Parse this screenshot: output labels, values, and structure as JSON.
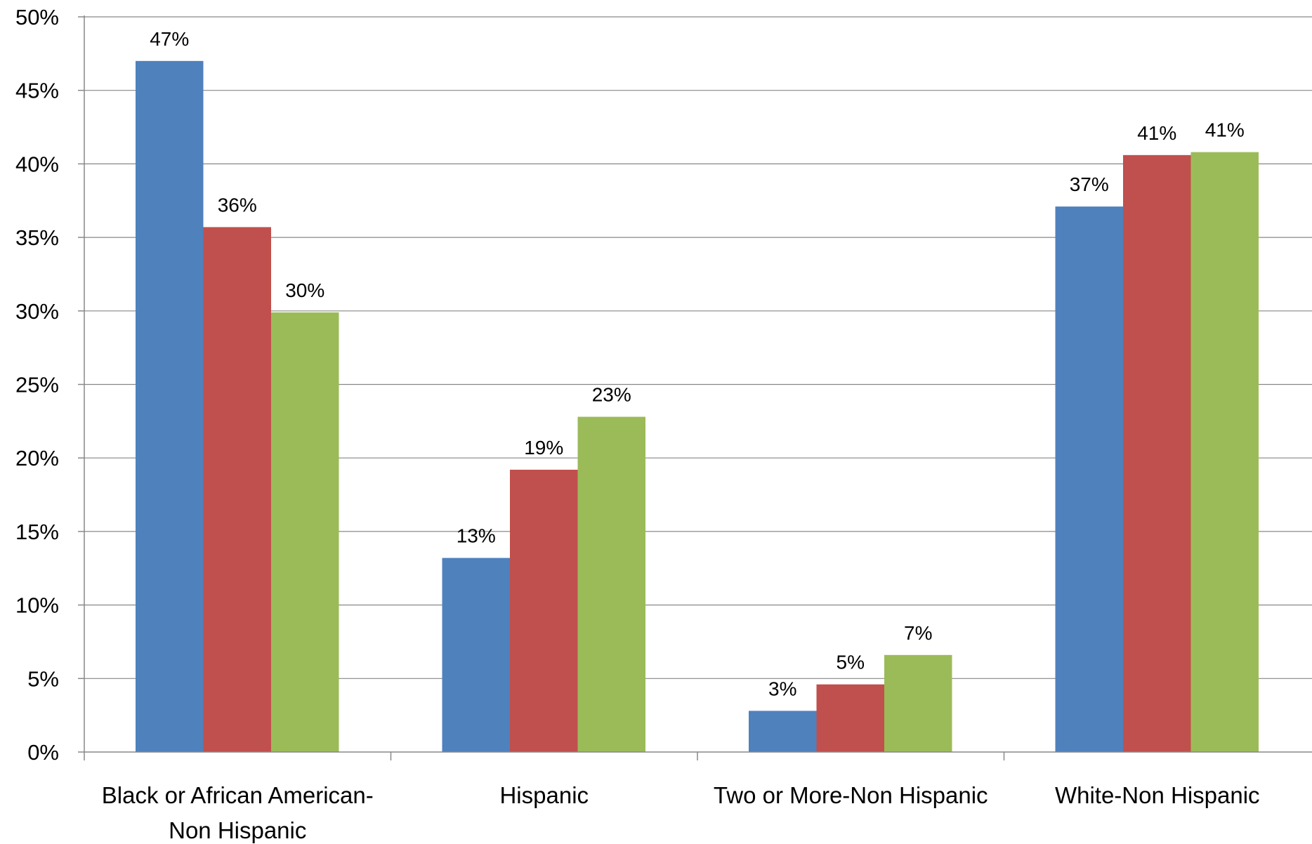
{
  "chart_data": {
    "type": "bar",
    "categories": [
      [
        "Black or African American-",
        "Non Hispanic"
      ],
      [
        "Hispanic"
      ],
      [
        "Two or More-Non Hispanic"
      ],
      [
        "White-Non Hispanic"
      ]
    ],
    "series": [
      {
        "values": [
          47.0,
          13.2,
          2.8,
          37.1
        ],
        "labels": [
          "47%",
          "13%",
          "3%",
          "37%"
        ],
        "color": "#4F81BD"
      },
      {
        "values": [
          35.7,
          19.2,
          4.6,
          40.6
        ],
        "labels": [
          "36%",
          "19%",
          "5%",
          "41%"
        ],
        "color": "#C0504D"
      },
      {
        "values": [
          29.9,
          22.8,
          6.6,
          40.8
        ],
        "labels": [
          "30%",
          "23%",
          "7%",
          "41%"
        ],
        "color": "#9BBB59"
      }
    ],
    "y_ticks": [
      "0%",
      "5%",
      "10%",
      "15%",
      "20%",
      "25%",
      "30%",
      "35%",
      "40%",
      "45%",
      "50%"
    ],
    "ylim": [
      0,
      50
    ],
    "ytick_step": 5,
    "grid": true,
    "legend": "none",
    "title": "",
    "xlabel": "",
    "ylabel": "",
    "colors": {
      "grid": "#888888",
      "axis": "#888888"
    }
  }
}
